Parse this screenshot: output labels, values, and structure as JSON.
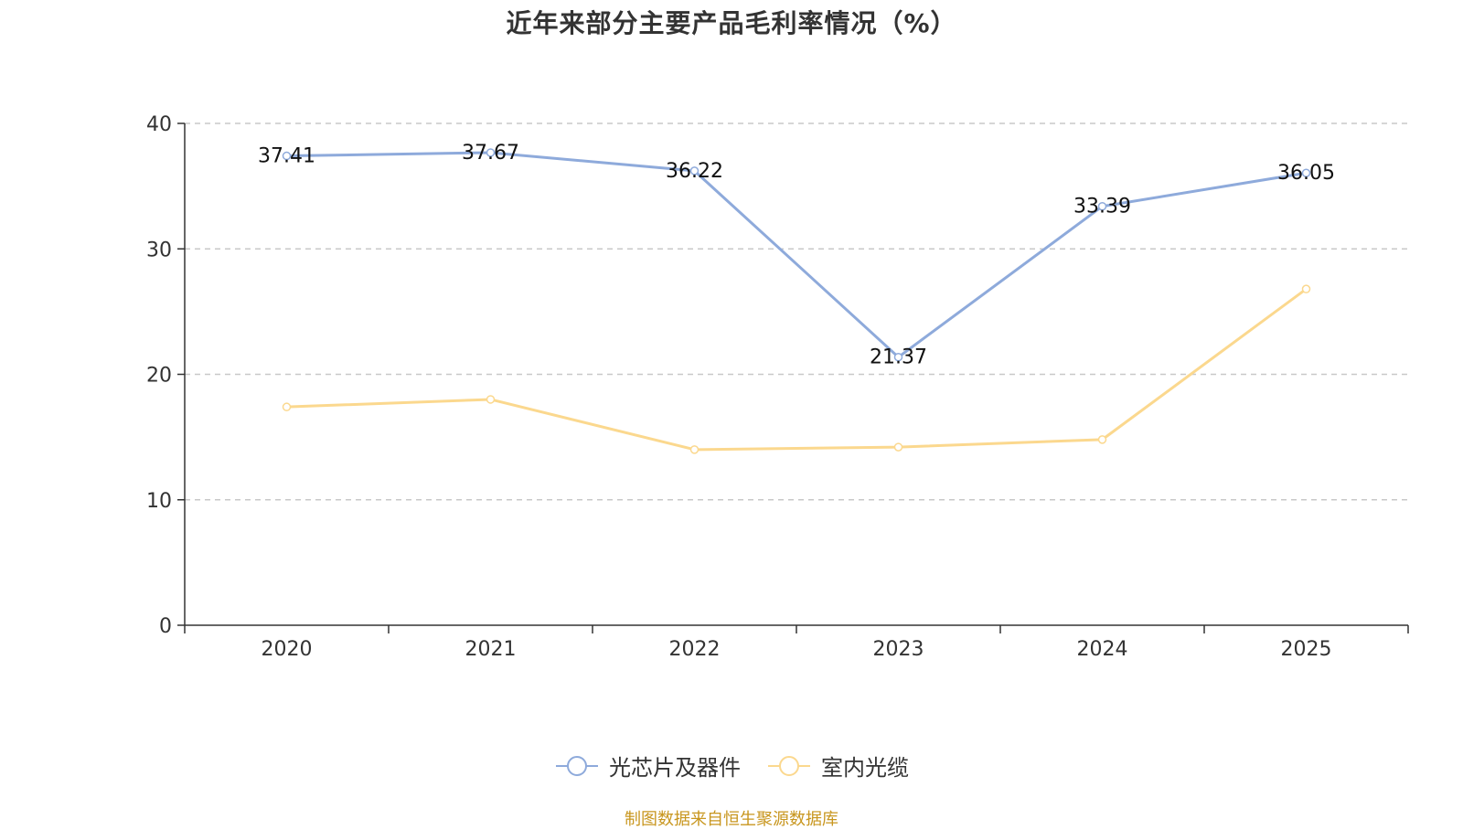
{
  "chart_data": {
    "type": "line",
    "title": "近年来部分主要产品毛利率情况（%）",
    "categories": [
      "2020",
      "2021",
      "2022",
      "2023",
      "2024",
      "2025"
    ],
    "ylim": [
      0,
      40
    ],
    "yticks": [
      0,
      10,
      20,
      30,
      40
    ],
    "grid": true,
    "legend_position": "bottom",
    "series": [
      {
        "name": "光芯片及器件",
        "color": "#8eaadb",
        "values": [
          37.41,
          37.67,
          36.22,
          21.37,
          33.39,
          36.05
        ],
        "labels": [
          "37.41",
          "37.67",
          "36.22",
          "21.37",
          "33.39",
          "36.05"
        ]
      },
      {
        "name": "室内光缆",
        "color": "#fbd88e",
        "values": [
          17.4,
          18.0,
          14.0,
          14.2,
          14.8,
          26.8
        ],
        "labels": []
      }
    ],
    "source": "制图数据来自恒生聚源数据库"
  }
}
